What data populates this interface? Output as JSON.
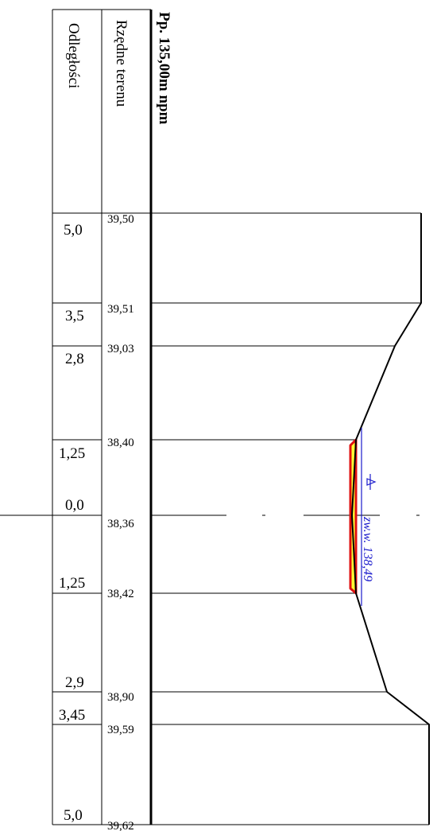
{
  "header": {
    "title": "Pp. 135,00m npm",
    "col_elevations": "Rzędne terenu",
    "col_distances": "Odległości"
  },
  "stations": [
    {
      "distance": "5,0",
      "elevation": "39,50"
    },
    {
      "distance": "3,5",
      "elevation": "39,51"
    },
    {
      "distance": "2,8",
      "elevation": "39,03"
    },
    {
      "distance": "1,25",
      "elevation": "38,40"
    },
    {
      "distance": "0,0",
      "elevation": "38,36"
    },
    {
      "distance": "1,25",
      "elevation": "38,42"
    },
    {
      "distance": "2,9",
      "elevation": "38,90"
    },
    {
      "distance": "3,45",
      "elevation": "39,59"
    },
    {
      "distance": "5,0",
      "elevation": "39,62"
    }
  ],
  "water_level": {
    "label": "zw.w. 138,49",
    "color": "#1a1acc"
  },
  "colors": {
    "profile_line": "#000000",
    "bed_outline": "#e01010",
    "bed_fill": "#ffff33"
  }
}
